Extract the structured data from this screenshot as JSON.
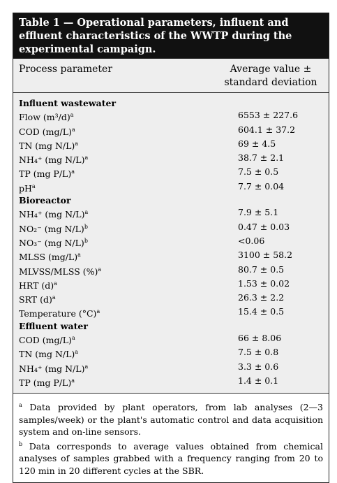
{
  "table": {
    "title": "Table 1 — Operational parameters, influent and effluent characteristics of the WWTP during the experimental campaign.",
    "header": [
      "Process parameter",
      "Average value ± standard deviation"
    ],
    "sections": [
      {
        "name": "Influent wastewater",
        "rows": [
          {
            "param": "Flow (m³/d)",
            "note": "a",
            "value": "6553 ± 227.6"
          },
          {
            "param": "COD (mg/L)",
            "note": "a",
            "value": "604.1 ± 37.2"
          },
          {
            "param": "TN (mg N/L)",
            "note": "a",
            "value": "69 ± 4.5"
          },
          {
            "param": "NH₄⁺ (mg N/L)",
            "note": "a",
            "value": "38.7 ± 2.1"
          },
          {
            "param": "TP (mg P/L)",
            "note": "a",
            "value": "7.5 ± 0.5"
          },
          {
            "param": "pH",
            "note": "a",
            "value": "7.7 ± 0.04"
          }
        ]
      },
      {
        "name": "Bioreactor",
        "rows": [
          {
            "param": "NH₄⁺ (mg N/L)",
            "note": "a",
            "value": "7.9 ± 5.1"
          },
          {
            "param": "NO₂⁻ (mg N/L)",
            "note": "b",
            "value": "0.47 ± 0.03"
          },
          {
            "param": "NO₃⁻ (mg N/L)",
            "note": "b",
            "value": "<0.06"
          },
          {
            "param": "MLSS (mg/L)",
            "note": "a",
            "value": "3100 ± 58.2"
          },
          {
            "param": "MLVSS/MLSS (%)",
            "note": "a",
            "value": "80.7 ± 0.5"
          },
          {
            "param": "HRT (d)",
            "note": "a",
            "value": "1.53 ± 0.02"
          },
          {
            "param": "SRT (d)",
            "note": "a",
            "value": "26.3 ± 2.2"
          },
          {
            "param": "Temperature (°C)",
            "note": "a",
            "value": "15.4 ± 0.5"
          }
        ]
      },
      {
        "name": "Effluent water",
        "rows": [
          {
            "param": "COD (mg/L)",
            "note": "a",
            "value": "66 ± 8.06"
          },
          {
            "param": "TN (mg N/L)",
            "note": "a",
            "value": "7.5 ± 0.8"
          },
          {
            "param": "NH₄⁺ (mg N/L)",
            "note": "a",
            "value": "3.3 ± 0.6"
          },
          {
            "param": "TP (mg P/L)",
            "note": "a",
            "value": "1.4 ± 0.1"
          }
        ]
      }
    ],
    "footnotes": [
      {
        "mark": "a",
        "text": "Data provided by plant operators, from lab analyses (2—3 samples/week) or the plant's automatic control and data acquisition system and on-line sensors."
      },
      {
        "mark": "b",
        "text": "Data corresponds to average values obtained from chemical analyses of samples grabbed with a frequency ranging from 20 to 120 min in 20 different cycles at the SBR."
      }
    ]
  }
}
